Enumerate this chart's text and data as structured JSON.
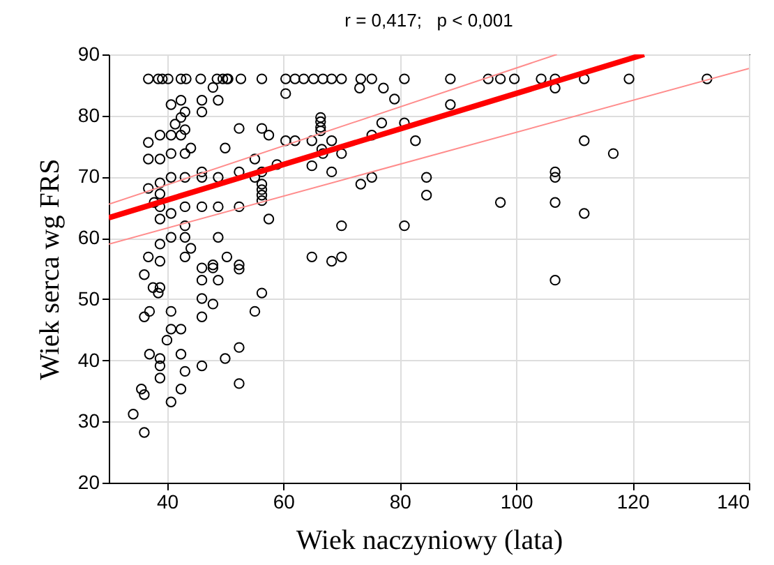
{
  "chart_data": {
    "type": "scatter",
    "title": "r = 0,417;   p < 0,001",
    "xlabel": "Wiek naczyniowy (lata)",
    "ylabel": "Wiek serca wg FRS",
    "xlim": [
      30,
      140
    ],
    "xticks": [
      40,
      60,
      80,
      100,
      120,
      140
    ],
    "ylim": [
      20,
      90
    ],
    "yticks": [
      20,
      30,
      40,
      50,
      60,
      70,
      80,
      90
    ],
    "grid": true,
    "marker": "circle",
    "series": [
      {
        "color": "#000000",
        "x": [
          36.8,
          38.5,
          39.2,
          40.2,
          42.4,
          43.3,
          45.8,
          48.6,
          49.6,
          50.5,
          50.3,
          52.7,
          56.3,
          60.4,
          62,
          63.5,
          65.2,
          66.8,
          68.3,
          70,
          73.3,
          75.2,
          80.8,
          88.7,
          95.2,
          97.3,
          99.7,
          104.3,
          106.7,
          111.7,
          119.4,
          132.8,
          47.9,
          42.4,
          46,
          48.8,
          40.7,
          43.1,
          46,
          42.4,
          41.4,
          43.1,
          36.8,
          38.8,
          40.7,
          42.4,
          44.1,
          43.1,
          40.7,
          38.8,
          36.8,
          50,
          46,
          46,
          48.8,
          40.7,
          43.1,
          38.8,
          36.8,
          38.8,
          37.8,
          38.8,
          40.7,
          38.8,
          43.1,
          46,
          48.8,
          43.1,
          40.7,
          43.1,
          48.8,
          38.8,
          44.1,
          36.8,
          38.8,
          43.1,
          47.9,
          50.3,
          46,
          47.9,
          46,
          48.8,
          36.1,
          37.6,
          38.8,
          38.5,
          46,
          47.9,
          37,
          36.1,
          40.7,
          46,
          40.7,
          42.4,
          40,
          37,
          38.8,
          38.8,
          42.4,
          43.1,
          46,
          50,
          38.8,
          35.6,
          36.1,
          42.4,
          40.7,
          34.2,
          36.1,
          60.4,
          73.1,
          77.2,
          79.1,
          52.4,
          56.3,
          57.5,
          66.4,
          66.4,
          66.4,
          66.4,
          60.4,
          62,
          64.9,
          68.3,
          76.9,
          80.8,
          75.2,
          82.7,
          66.6,
          66.8,
          70,
          55.1,
          58.9,
          52.4,
          56.3,
          64.9,
          68.3,
          55.1,
          56.3,
          56.3,
          56.3,
          56.3,
          73.3,
          75.2,
          52.4,
          57.5,
          70,
          80.8,
          64.9,
          68.3,
          70,
          52.4,
          52.4,
          56.3,
          55.1,
          52.4,
          52.4,
          88.7,
          106.7,
          111.7,
          116.7,
          84.6,
          84.6,
          106.7,
          106.7,
          97.3,
          106.7,
          111.7,
          106.7
        ],
        "values": [
          86,
          86,
          86,
          86,
          86,
          86,
          86,
          86,
          86,
          86,
          86,
          86,
          86,
          86,
          86,
          86,
          86,
          86,
          86,
          86,
          86,
          86,
          86,
          86,
          86,
          86,
          86,
          86,
          86,
          86,
          86,
          86,
          84.6,
          82.5,
          82.5,
          82.5,
          81.8,
          80.6,
          80.6,
          79.7,
          78.6,
          77.7,
          75.6,
          76.8,
          76.8,
          76.8,
          74.7,
          73.8,
          73.8,
          72.9,
          72.9,
          74.7,
          70.8,
          69.9,
          69.9,
          69.9,
          69.9,
          69,
          68.1,
          67.2,
          65.8,
          65.1,
          64,
          63.1,
          65.1,
          65.1,
          65.1,
          62,
          60.1,
          60.1,
          60.1,
          59,
          58.3,
          56.9,
          56.2,
          56.9,
          55.6,
          56.9,
          55.1,
          55.1,
          53.1,
          53.1,
          54,
          51.9,
          51.9,
          51,
          50.1,
          49.2,
          48,
          47.1,
          48,
          47.1,
          45.1,
          45.1,
          43.3,
          41,
          40.3,
          39.1,
          41,
          38.2,
          39.1,
          40.3,
          37.1,
          35.3,
          34.4,
          35.3,
          33.2,
          31.2,
          28.2,
          83.6,
          84.5,
          84.5,
          82.7,
          77.9,
          77.9,
          76.8,
          79.7,
          79,
          78.1,
          77.5,
          75.9,
          75.9,
          75.9,
          75.9,
          78.8,
          78.8,
          76.8,
          75.9,
          74.5,
          73.8,
          73.8,
          72.9,
          72,
          70.8,
          70.8,
          71.8,
          70.8,
          69.9,
          68.8,
          67.9,
          67,
          66.1,
          68.8,
          69.9,
          65.1,
          63.1,
          62,
          62,
          56.9,
          56.2,
          56.9,
          55.6,
          54.9,
          51,
          48,
          42.1,
          36.2,
          81.8,
          84.5,
          75.9,
          73.8,
          69.9,
          67,
          70.8,
          69.9,
          65.8,
          65.8,
          64,
          53.1
        ]
      },
      {
        "type": "line",
        "marker": "none",
        "color": "#ff0000",
        "x": [
          30,
          122
        ],
        "values": [
          63.3,
          90
        ]
      },
      {
        "type": "line",
        "marker": "none",
        "color": "#ff8c8c",
        "x": [
          30,
          140
        ],
        "values": [
          59,
          87.7
        ]
      },
      {
        "type": "line",
        "marker": "none",
        "color": "#ff8c8c",
        "x": [
          30,
          107
        ],
        "values": [
          65.5,
          90
        ]
      }
    ]
  }
}
